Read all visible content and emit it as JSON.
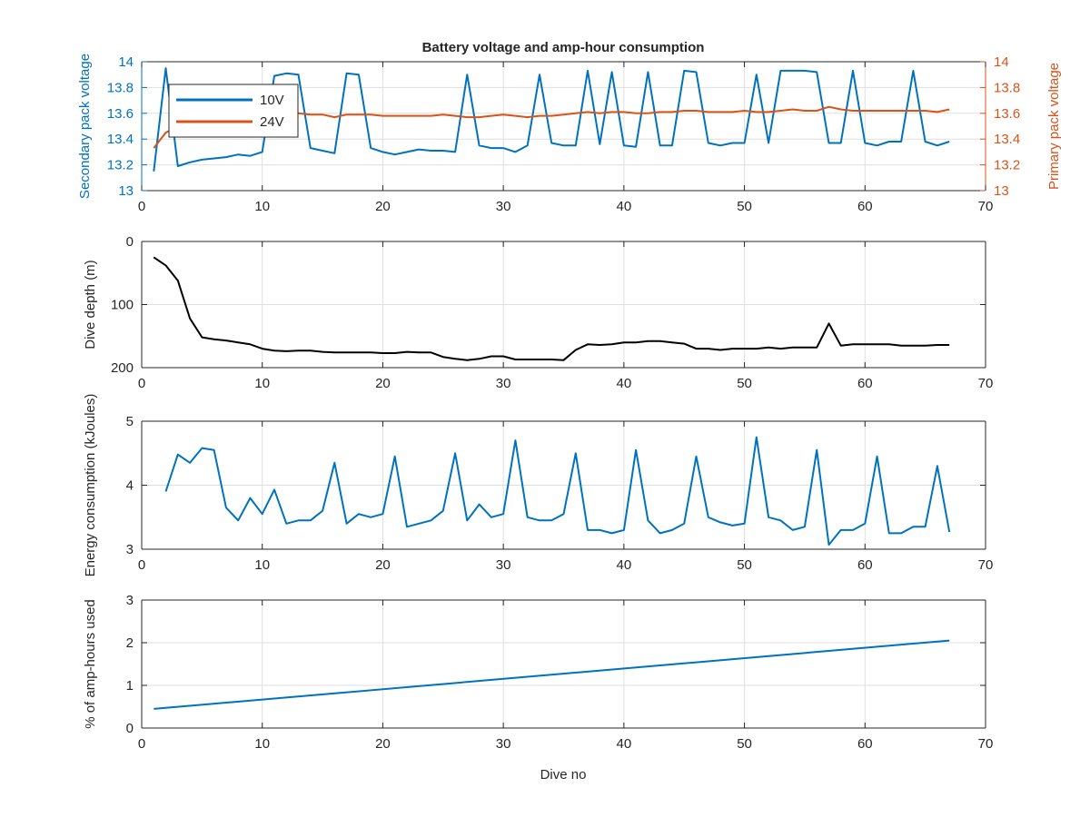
{
  "figure": {
    "title": "Battery voltage and amp-hour consumption",
    "xlabel": "Dive no"
  },
  "chart_data": [
    {
      "type": "line",
      "title": "Battery voltage and amp-hour consumption",
      "xlabel": "",
      "ylabel": "Secondary pack voltage",
      "ylabel_right": "Primary pack voltage",
      "xlim": [
        0,
        70
      ],
      "ylim": [
        13,
        14
      ],
      "ylim_right": [
        13,
        14
      ],
      "xticks": [
        0,
        10,
        20,
        30,
        40,
        50,
        60,
        70
      ],
      "yticks": [
        13,
        13.2,
        13.4,
        13.6,
        13.8,
        14
      ],
      "grid": true,
      "legend": "top-left",
      "series": [
        {
          "name": "10V",
          "axis": "left",
          "color": "#0072BD",
          "x": [
            1,
            2,
            3,
            4,
            5,
            6,
            7,
            8,
            9,
            10,
            11,
            12,
            13,
            14,
            15,
            16,
            17,
            18,
            19,
            20,
            21,
            22,
            23,
            24,
            25,
            26,
            27,
            28,
            29,
            30,
            31,
            32,
            33,
            34,
            35,
            36,
            37,
            38,
            39,
            40,
            41,
            42,
            43,
            44,
            45,
            46,
            47,
            48,
            49,
            50,
            51,
            52,
            53,
            54,
            55,
            56,
            57,
            58,
            59,
            60,
            61,
            62,
            63,
            64,
            65,
            66,
            67
          ],
          "values": [
            13.15,
            13.95,
            13.19,
            13.22,
            13.24,
            13.25,
            13.26,
            13.28,
            13.27,
            13.3,
            13.89,
            13.91,
            13.9,
            13.33,
            13.31,
            13.29,
            13.91,
            13.9,
            13.33,
            13.3,
            13.28,
            13.3,
            13.32,
            13.31,
            13.31,
            13.3,
            13.9,
            13.35,
            13.33,
            13.33,
            13.3,
            13.35,
            13.9,
            13.37,
            13.35,
            13.35,
            13.93,
            13.36,
            13.92,
            13.35,
            13.34,
            13.92,
            13.35,
            13.35,
            13.93,
            13.92,
            13.37,
            13.35,
            13.37,
            13.37,
            13.9,
            13.37,
            13.93,
            13.93,
            13.93,
            13.92,
            13.37,
            13.37,
            13.93,
            13.37,
            13.35,
            13.38,
            13.38,
            13.93,
            13.38,
            13.35,
            13.38
          ]
        },
        {
          "name": "24V",
          "axis": "right",
          "color": "#D95319",
          "x": [
            1,
            2,
            3,
            4,
            5,
            6,
            7,
            8,
            9,
            10,
            11,
            12,
            13,
            14,
            15,
            16,
            17,
            18,
            19,
            20,
            21,
            22,
            23,
            24,
            25,
            26,
            27,
            28,
            29,
            30,
            31,
            32,
            33,
            34,
            35,
            36,
            37,
            38,
            39,
            40,
            41,
            42,
            43,
            44,
            45,
            46,
            47,
            48,
            49,
            50,
            51,
            52,
            53,
            54,
            55,
            56,
            57,
            58,
            59,
            60,
            61,
            62,
            63,
            64,
            65,
            66,
            67
          ],
          "values": [
            13.33,
            13.45,
            13.5,
            13.54,
            13.55,
            13.57,
            13.57,
            13.58,
            13.58,
            13.58,
            13.59,
            13.59,
            13.6,
            13.59,
            13.59,
            13.57,
            13.59,
            13.59,
            13.59,
            13.58,
            13.58,
            13.58,
            13.58,
            13.58,
            13.59,
            13.58,
            13.57,
            13.57,
            13.58,
            13.59,
            13.58,
            13.57,
            13.58,
            13.58,
            13.59,
            13.6,
            13.61,
            13.6,
            13.61,
            13.61,
            13.6,
            13.6,
            13.61,
            13.61,
            13.62,
            13.62,
            13.61,
            13.61,
            13.61,
            13.62,
            13.61,
            13.61,
            13.62,
            13.63,
            13.62,
            13.62,
            13.65,
            13.63,
            13.62,
            13.62,
            13.62,
            13.62,
            13.62,
            13.62,
            13.62,
            13.61,
            13.63
          ]
        }
      ]
    },
    {
      "type": "line",
      "ylabel": "Dive depth (m)",
      "xlim": [
        0,
        70
      ],
      "ylim": [
        0,
        200
      ],
      "y_reversed": true,
      "xticks": [
        0,
        10,
        20,
        30,
        40,
        50,
        60,
        70
      ],
      "yticks": [
        0,
        100,
        200
      ],
      "grid": true,
      "series": [
        {
          "color": "#000000",
          "x": [
            1,
            2,
            3,
            4,
            5,
            6,
            7,
            8,
            9,
            10,
            11,
            12,
            13,
            14,
            15,
            16,
            17,
            18,
            19,
            20,
            21,
            22,
            23,
            24,
            25,
            26,
            27,
            28,
            29,
            30,
            31,
            32,
            33,
            34,
            35,
            36,
            37,
            38,
            39,
            40,
            41,
            42,
            43,
            44,
            45,
            46,
            47,
            48,
            49,
            50,
            51,
            52,
            53,
            54,
            55,
            56,
            57,
            58,
            59,
            60,
            61,
            62,
            63,
            64,
            65,
            66,
            67
          ],
          "values": [
            25,
            38,
            62,
            122,
            152,
            155,
            157,
            160,
            163,
            170,
            173,
            174,
            173,
            173,
            175,
            176,
            176,
            176,
            176,
            177,
            177,
            175,
            176,
            176,
            183,
            186,
            188,
            186,
            182,
            182,
            187,
            187,
            187,
            187,
            188,
            172,
            163,
            164,
            163,
            160,
            160,
            158,
            158,
            160,
            162,
            170,
            170,
            172,
            170,
            170,
            170,
            168,
            170,
            168,
            168,
            168,
            130,
            165,
            163,
            163,
            163,
            163,
            165,
            165,
            165,
            164,
            164
          ]
        }
      ]
    },
    {
      "type": "line",
      "ylabel": "Energy consumption (kJoules)",
      "xlim": [
        0,
        70
      ],
      "ylim": [
        3,
        5
      ],
      "xticks": [
        0,
        10,
        20,
        30,
        40,
        50,
        60,
        70
      ],
      "yticks": [
        3,
        4,
        5
      ],
      "grid": true,
      "series": [
        {
          "color": "#0072BD",
          "x": [
            2,
            3,
            4,
            5,
            6,
            7,
            8,
            9,
            10,
            11,
            12,
            13,
            14,
            15,
            16,
            17,
            18,
            19,
            20,
            21,
            22,
            23,
            24,
            25,
            26,
            27,
            28,
            29,
            30,
            31,
            32,
            33,
            34,
            35,
            36,
            37,
            38,
            39,
            40,
            41,
            42,
            43,
            44,
            45,
            46,
            47,
            48,
            49,
            50,
            51,
            52,
            53,
            54,
            55,
            56,
            57,
            58,
            59,
            60,
            61,
            62,
            63,
            64,
            65,
            66,
            67
          ],
          "values": [
            3.9,
            4.48,
            4.35,
            4.58,
            4.55,
            3.65,
            3.45,
            3.8,
            3.55,
            3.93,
            3.4,
            3.45,
            3.45,
            3.6,
            4.35,
            3.4,
            3.55,
            3.5,
            3.55,
            4.45,
            3.35,
            3.4,
            3.45,
            3.6,
            4.5,
            3.45,
            3.7,
            3.5,
            3.55,
            4.7,
            3.5,
            3.45,
            3.45,
            3.55,
            4.5,
            3.3,
            3.3,
            3.25,
            3.3,
            4.55,
            3.45,
            3.25,
            3.3,
            3.4,
            4.45,
            3.5,
            3.42,
            3.37,
            3.4,
            4.75,
            3.5,
            3.45,
            3.3,
            3.35,
            4.55,
            3.07,
            3.3,
            3.3,
            3.4,
            4.45,
            3.25,
            3.25,
            3.35,
            3.35,
            4.3,
            3.27
          ]
        }
      ]
    },
    {
      "type": "line",
      "ylabel": "% of amp-hours used",
      "xlabel": "Dive no",
      "xlim": [
        0,
        70
      ],
      "ylim": [
        0,
        3
      ],
      "xticks": [
        0,
        10,
        20,
        30,
        40,
        50,
        60,
        70
      ],
      "yticks": [
        0,
        1,
        2,
        3
      ],
      "grid": true,
      "series": [
        {
          "color": "#0072BD",
          "x": [
            1,
            67
          ],
          "values": [
            0.45,
            2.05
          ]
        }
      ]
    }
  ]
}
